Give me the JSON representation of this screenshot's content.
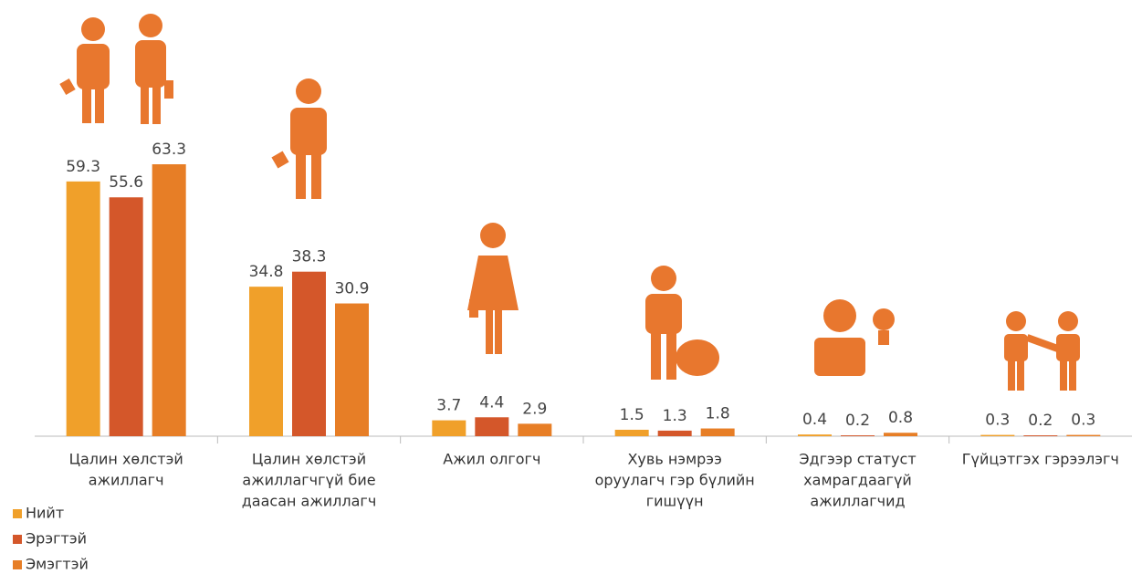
{
  "chart_data": {
    "type": "bar",
    "categories": [
      [
        "Цалин хөлстэй",
        "ажиллагч"
      ],
      [
        "Цалин хөлстэй",
        "ажиллагчгүй бие",
        "даасан ажиллагч"
      ],
      [
        "Ажил олгогч"
      ],
      [
        "Хувь нэмрээ",
        "оруулагч гэр бүлийн",
        "гишүүн"
      ],
      [
        "Эдгээр статуст",
        "хамрагдаагүй",
        "ажиллагчид"
      ],
      [
        "Гүйцэтгэх гэрээлэгч"
      ]
    ],
    "series": [
      {
        "name": "Нийт",
        "color": "#f0a02a",
        "values": [
          59.3,
          34.8,
          3.7,
          1.5,
          0.4,
          0.3
        ]
      },
      {
        "name": "Эрэгтэй",
        "color": "#d4572a",
        "values": [
          55.6,
          38.3,
          4.4,
          1.3,
          0.2,
          0.2
        ]
      },
      {
        "name": "Эмэгтэй",
        "color": "#e77e26",
        "values": [
          63.3,
          30.9,
          2.9,
          1.8,
          0.8,
          0.3
        ]
      }
    ],
    "legend": "bottom-left"
  }
}
